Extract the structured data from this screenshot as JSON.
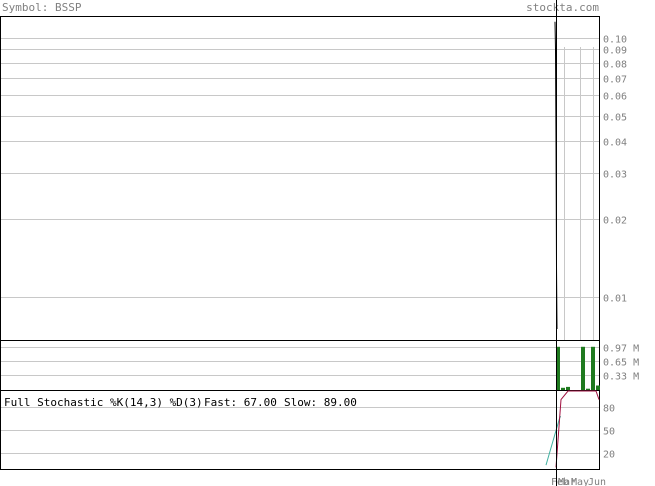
{
  "header": {
    "symbol": "Symbol: BSSP",
    "site": "stockta.com"
  },
  "stochastic": {
    "title": "Full Stochastic %K(14,3) %D(3)",
    "fast_label": "Fast: 67.00",
    "slow_label": "Slow: 89.00"
  },
  "colors": {
    "grid": "#c8c8c8",
    "price_line": "#000000",
    "volume": "#1f7a1f",
    "fast": "#40b0a0",
    "slow": "#a01040",
    "axis_text": "#808080"
  },
  "chart_data": [
    {
      "type": "line",
      "name": "price",
      "yscale": "log",
      "ylim": [
        0.0068,
        0.12
      ],
      "yticks": [
        "0.10",
        "0.09",
        "0.08",
        "0.07",
        "0.06",
        "0.05",
        "0.04",
        "0.03",
        "0.02",
        "0.01"
      ],
      "xticks": [
        "Feb",
        "Mar",
        "May",
        "Jun"
      ],
      "series": [
        {
          "values": [
            0.115,
            0.09,
            0.04,
            0.013,
            0.0075
          ]
        }
      ]
    },
    {
      "type": "bar",
      "name": "volume",
      "ylim": [
        0,
        1.1
      ],
      "yticks": [
        "0.97 M",
        "0.65 M",
        "0.33 M"
      ],
      "values": [
        0.97,
        0.05,
        0.07,
        0.0,
        0.97,
        0.03,
        0.97,
        0.1
      ]
    },
    {
      "type": "line",
      "name": "stochastic",
      "ylim": [
        0,
        100
      ],
      "yticks": [
        "80",
        "50",
        "20"
      ],
      "series": [
        {
          "values": [
            5,
            67,
            67
          ]
        },
        {
          "values": [
            2,
            89,
            100,
            100,
            100,
            100,
            100,
            89
          ]
        }
      ]
    }
  ]
}
